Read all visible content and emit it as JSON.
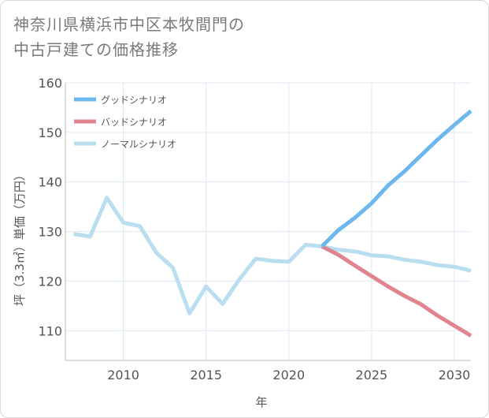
{
  "title": {
    "line1": "神奈川県横浜市中区本牧間門の",
    "line2": "中古戸建ての価格推移"
  },
  "chart_data": {
    "type": "line",
    "xlabel": "年",
    "ylabel": "坪（3.3㎡）単価（万円）",
    "xlim": [
      2006.5,
      2031
    ],
    "ylim": [
      104,
      160
    ],
    "x_ticks": [
      2010,
      2015,
      2020,
      2025,
      2030
    ],
    "y_ticks": [
      110,
      120,
      130,
      140,
      150,
      160
    ],
    "grid": true,
    "legend_position": "top-left",
    "series": [
      {
        "name": "グッドシナリオ",
        "color": "#6cb8ee",
        "x": [
          2022,
          2023,
          2024,
          2025,
          2026,
          2027,
          2028,
          2029,
          2030,
          2031
        ],
        "y": [
          127.0,
          130.3,
          132.8,
          135.7,
          139.3,
          142.2,
          145.4,
          148.6,
          151.5,
          154.3
        ]
      },
      {
        "name": "バッドシナリオ",
        "color": "#e0848f",
        "x": [
          2022,
          2023,
          2024,
          2025,
          2026,
          2027,
          2028,
          2029,
          2030,
          2031
        ],
        "y": [
          127.0,
          125.3,
          123.1,
          121.0,
          118.9,
          117.0,
          115.3,
          113.0,
          111.0,
          109.0
        ]
      },
      {
        "name": "ノーマルシナリオ",
        "color": "#b9def0",
        "x": [
          2007,
          2008,
          2009,
          2010,
          2011,
          2012,
          2013,
          2014,
          2015,
          2016,
          2017,
          2018,
          2019,
          2020,
          2021,
          2022,
          2023,
          2024,
          2025,
          2026,
          2027,
          2028,
          2029,
          2030,
          2031
        ],
        "y": [
          129.5,
          129.0,
          136.8,
          131.8,
          131.1,
          125.7,
          122.7,
          113.5,
          118.9,
          115.4,
          120.3,
          124.5,
          124.1,
          123.9,
          127.3,
          127.0,
          126.3,
          126.0,
          125.2,
          125.0,
          124.3,
          123.9,
          123.2,
          122.9,
          122.1
        ]
      }
    ]
  }
}
